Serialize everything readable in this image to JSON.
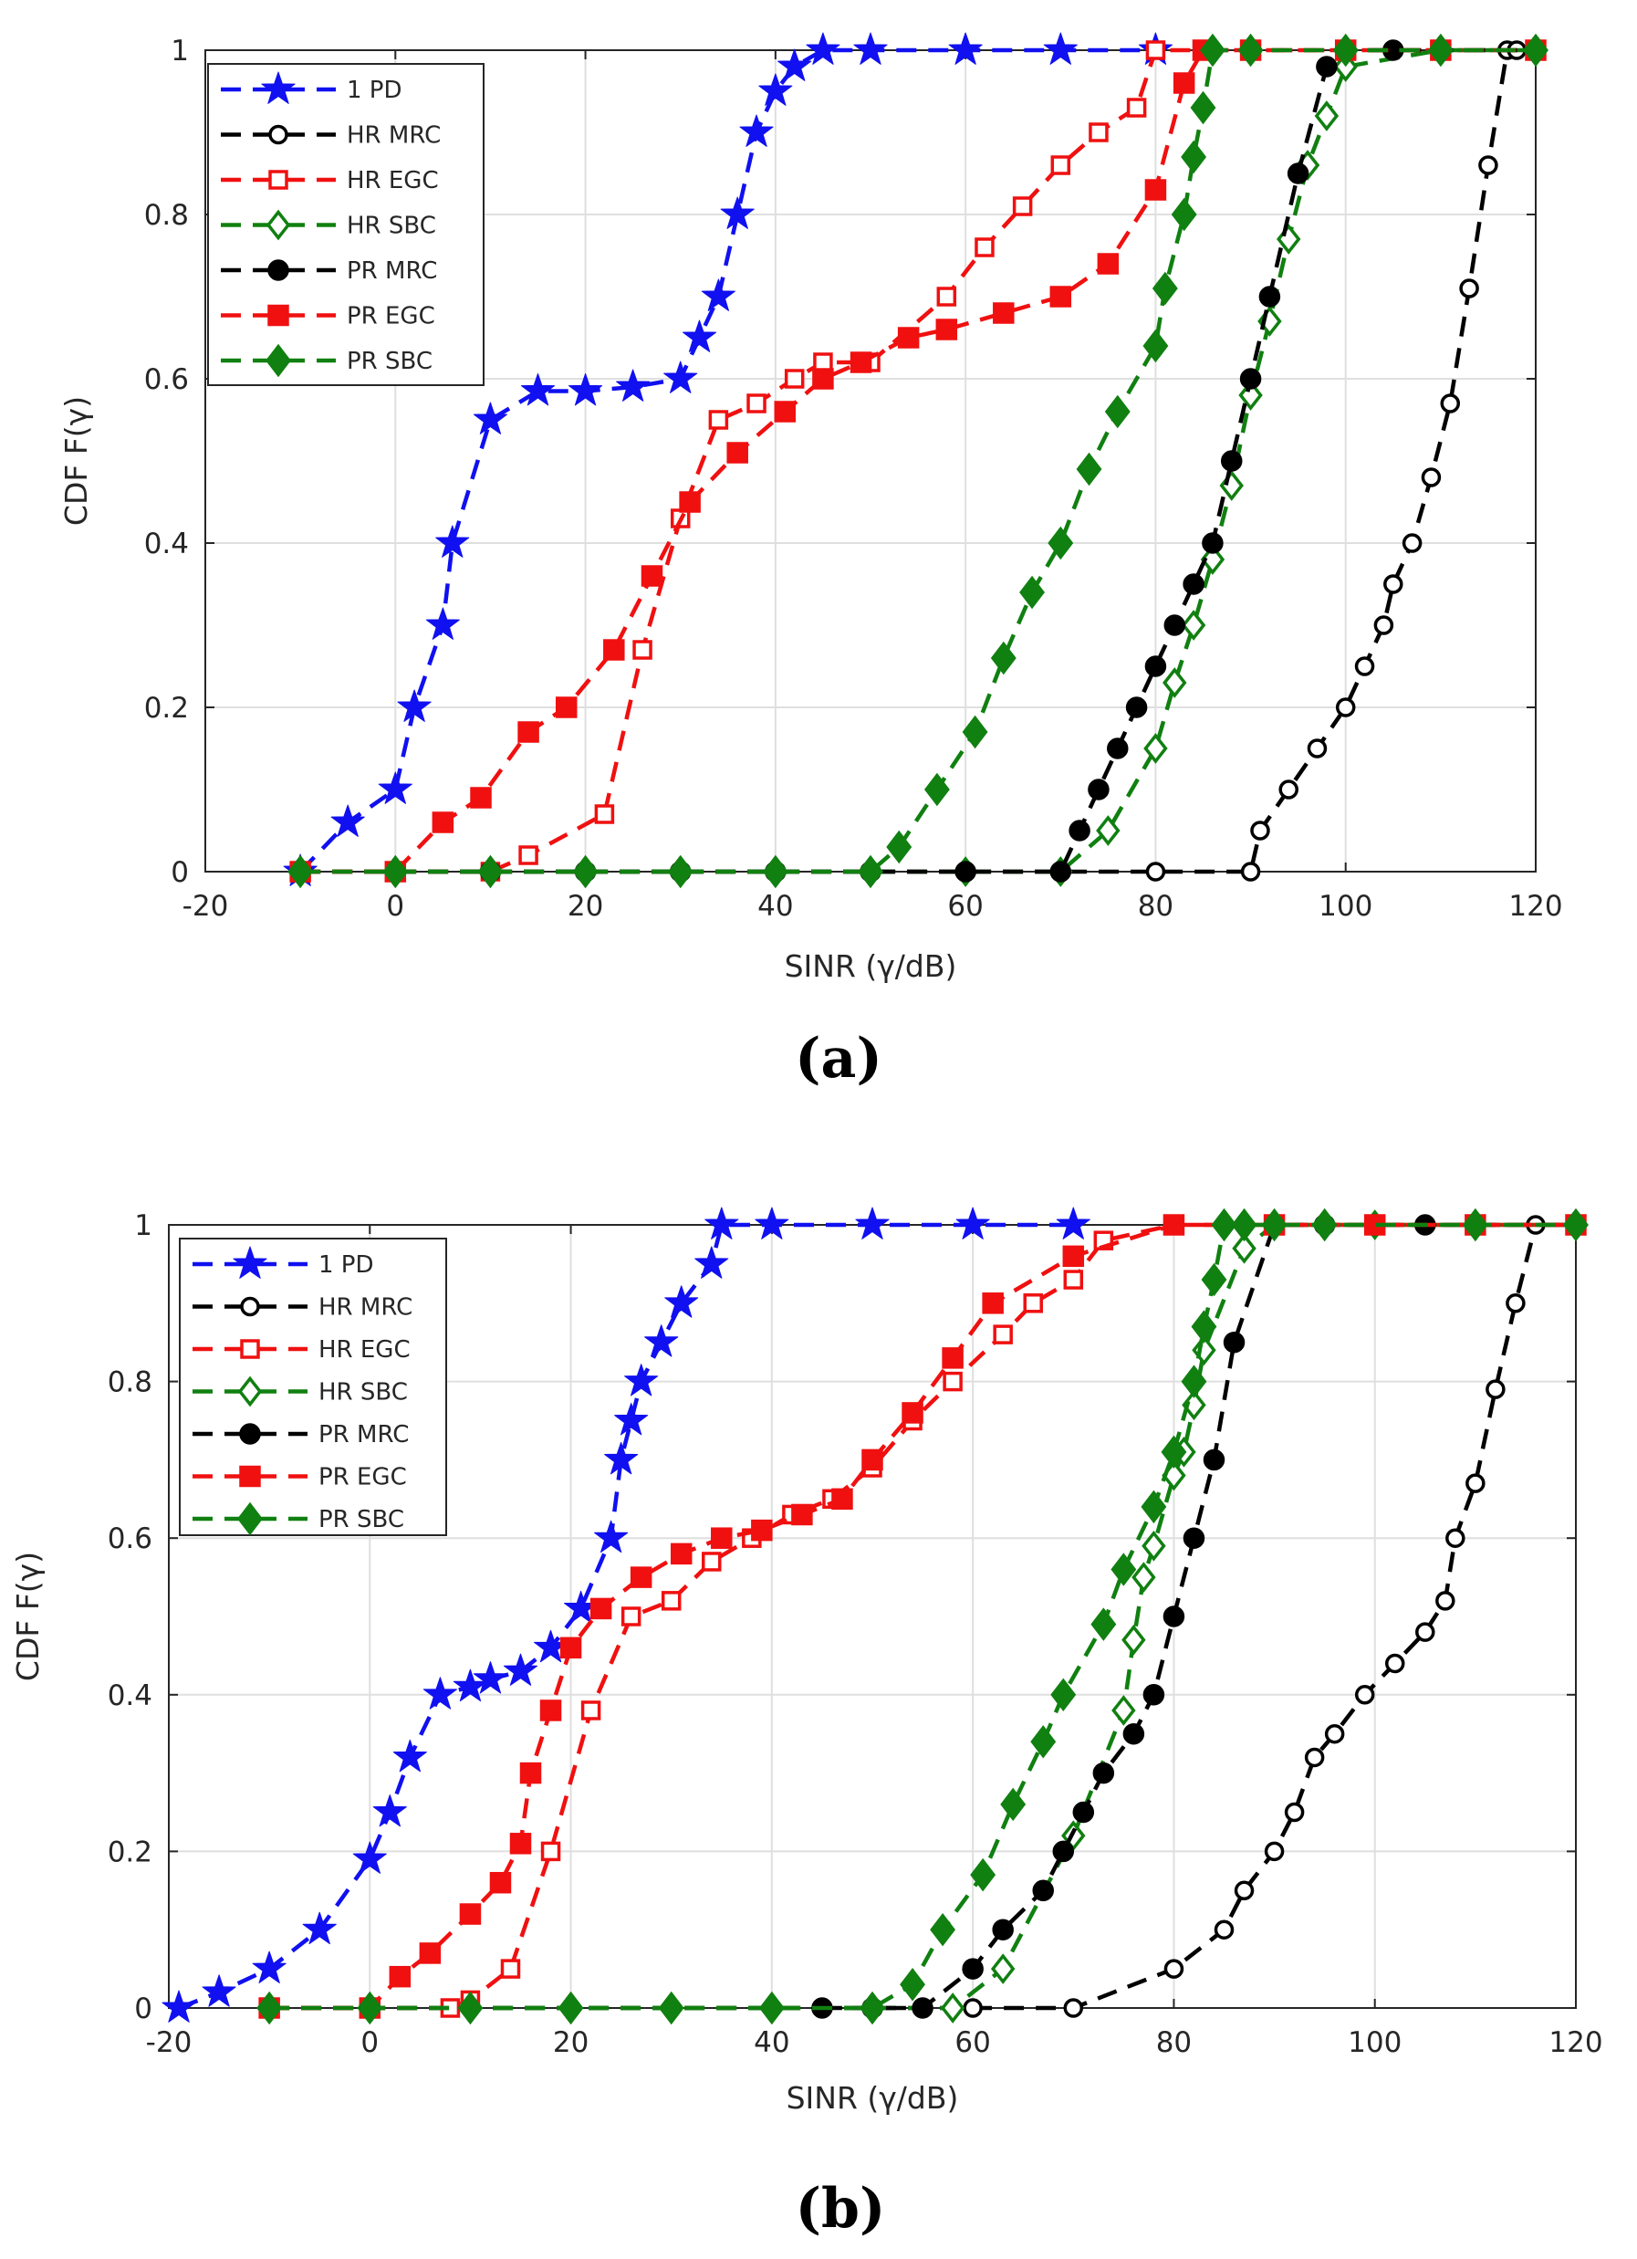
{
  "colors": {
    "blue": "#1010f0",
    "black": "#000000",
    "red": "#f01010",
    "green": "#108010"
  },
  "chart_data": [
    {
      "type": "line",
      "panel_label": "(a)",
      "title": "",
      "xlabel": "SINR (γ/dB)",
      "ylabel": "CDF F(γ)",
      "xlim": [
        -20,
        120
      ],
      "ylim": [
        0,
        1
      ],
      "xticks": [
        -20,
        0,
        20,
        40,
        60,
        80,
        100,
        120
      ],
      "yticks": [
        0,
        0.2,
        0.4,
        0.6,
        0.8,
        1
      ],
      "xtick_labels": [
        "-20",
        "0",
        "20",
        "40",
        "60",
        "80",
        "100",
        "120"
      ],
      "ytick_labels": [
        "0",
        "0.2",
        "0.4",
        "0.6",
        "0.8",
        "1"
      ],
      "grid": true,
      "legend_position": "top-left",
      "series": [
        {
          "name": "1 PD",
          "color": "#1010f0",
          "marker": "star",
          "filled": true,
          "x": [
            -10,
            -5,
            0,
            2,
            5,
            6,
            10,
            15,
            20,
            25,
            30,
            32,
            34,
            36,
            38,
            40,
            42,
            45,
            50,
            60,
            70,
            80
          ],
          "y": [
            0,
            0.06,
            0.1,
            0.2,
            0.3,
            0.4,
            0.55,
            0.585,
            0.585,
            0.59,
            0.6,
            0.65,
            0.7,
            0.8,
            0.9,
            0.95,
            0.98,
            1,
            1,
            1,
            1,
            1
          ]
        },
        {
          "name": "HR MRC",
          "color": "#000000",
          "marker": "circle",
          "filled": false,
          "x": [
            -10,
            0,
            10,
            20,
            30,
            40,
            50,
            60,
            70,
            80,
            90,
            91,
            94,
            97,
            100,
            102,
            104,
            105,
            107,
            109,
            111,
            113,
            115,
            117,
            118,
            120
          ],
          "y": [
            0,
            0,
            0,
            0,
            0,
            0,
            0,
            0,
            0,
            0,
            0,
            0.05,
            0.1,
            0.15,
            0.2,
            0.25,
            0.3,
            0.35,
            0.4,
            0.48,
            0.57,
            0.71,
            0.86,
            1,
            1,
            1
          ]
        },
        {
          "name": "HR EGC",
          "color": "#f01010",
          "marker": "square",
          "filled": false,
          "x": [
            -10,
            0,
            10,
            14,
            22,
            26,
            30,
            34,
            38,
            42,
            45,
            50,
            58,
            62,
            66,
            70,
            74,
            78,
            80,
            85,
            90,
            100,
            110,
            120
          ],
          "y": [
            0,
            0,
            0,
            0.02,
            0.07,
            0.27,
            0.43,
            0.55,
            0.57,
            0.6,
            0.62,
            0.62,
            0.7,
            0.76,
            0.81,
            0.86,
            0.9,
            0.93,
            1,
            1,
            1,
            1,
            1,
            1
          ]
        },
        {
          "name": "HR SBC",
          "color": "#108010",
          "marker": "diamond",
          "filled": false,
          "x": [
            -10,
            0,
            10,
            20,
            30,
            40,
            50,
            60,
            70,
            75,
            80,
            82,
            84,
            86,
            88,
            90,
            92,
            94,
            96,
            98,
            100,
            110,
            120
          ],
          "y": [
            0,
            0,
            0,
            0,
            0,
            0,
            0,
            0,
            0,
            0.05,
            0.15,
            0.23,
            0.3,
            0.38,
            0.47,
            0.58,
            0.67,
            0.77,
            0.86,
            0.92,
            0.98,
            1,
            1
          ]
        },
        {
          "name": "PR MRC",
          "color": "#000000",
          "marker": "circle",
          "filled": true,
          "x": [
            -10,
            0,
            10,
            20,
            30,
            40,
            50,
            60,
            70,
            72,
            74,
            76,
            78,
            80,
            82,
            84,
            86,
            88,
            90,
            92,
            95,
            98,
            100,
            105,
            110,
            120
          ],
          "y": [
            0,
            0,
            0,
            0,
            0,
            0,
            0,
            0,
            0,
            0.05,
            0.1,
            0.15,
            0.2,
            0.25,
            0.3,
            0.35,
            0.4,
            0.5,
            0.6,
            0.7,
            0.85,
            0.98,
            1,
            1,
            1,
            1
          ]
        },
        {
          "name": "PR EGC",
          "color": "#f01010",
          "marker": "square",
          "filled": true,
          "x": [
            -10,
            0,
            5,
            9,
            14,
            18,
            23,
            27,
            31,
            36,
            41,
            45,
            49,
            54,
            58,
            64,
            70,
            75,
            80,
            83,
            85,
            90,
            100,
            110,
            120
          ],
          "y": [
            0,
            0,
            0.06,
            0.09,
            0.17,
            0.2,
            0.27,
            0.36,
            0.45,
            0.51,
            0.56,
            0.6,
            0.62,
            0.65,
            0.66,
            0.68,
            0.7,
            0.74,
            0.83,
            0.96,
            1,
            1,
            1,
            1,
            1
          ]
        },
        {
          "name": "PR SBC",
          "color": "#108010",
          "marker": "diamond",
          "filled": true,
          "x": [
            -10,
            0,
            10,
            20,
            30,
            40,
            50,
            53,
            57,
            61,
            64,
            67,
            70,
            73,
            76,
            80,
            81,
            83,
            84,
            85,
            86,
            90,
            100,
            110,
            120
          ],
          "y": [
            0,
            0,
            0,
            0,
            0,
            0,
            0,
            0.03,
            0.1,
            0.17,
            0.26,
            0.34,
            0.4,
            0.49,
            0.56,
            0.64,
            0.71,
            0.8,
            0.87,
            0.93,
            1,
            1,
            1,
            1,
            1
          ]
        }
      ]
    },
    {
      "type": "line",
      "panel_label": "(b)",
      "title": "",
      "xlabel": "SINR (γ/dB)",
      "ylabel": "CDF F(γ)",
      "xlim": [
        -20,
        120
      ],
      "ylim": [
        0,
        1
      ],
      "xticks": [
        -20,
        0,
        20,
        40,
        60,
        80,
        100,
        120
      ],
      "yticks": [
        0,
        0.2,
        0.4,
        0.6,
        0.8,
        1
      ],
      "xtick_labels": [
        "-20",
        "0",
        "20",
        "40",
        "60",
        "80",
        "100",
        "120"
      ],
      "ytick_labels": [
        "0",
        "0.2",
        "0.4",
        "0.6",
        "0.8",
        "1"
      ],
      "grid": true,
      "legend_position": "top-left",
      "series": [
        {
          "name": "1 PD",
          "color": "#1010f0",
          "marker": "star",
          "filled": true,
          "x": [
            -19,
            -15,
            -10,
            -5,
            0,
            2,
            4,
            7,
            10,
            12,
            15,
            18,
            21,
            24,
            25,
            26,
            27,
            29,
            31,
            34,
            35,
            40,
            50,
            60,
            70
          ],
          "y": [
            0,
            0.02,
            0.05,
            0.1,
            0.19,
            0.25,
            0.32,
            0.4,
            0.41,
            0.42,
            0.43,
            0.46,
            0.51,
            0.6,
            0.7,
            0.75,
            0.8,
            0.85,
            0.9,
            0.95,
            1,
            1,
            1,
            1,
            1
          ]
        },
        {
          "name": "HR MRC",
          "color": "#000000",
          "marker": "circle",
          "filled": false,
          "x": [
            -10,
            0,
            10,
            20,
            30,
            40,
            50,
            60,
            70,
            80,
            85,
            87,
            90,
            92,
            94,
            96,
            99,
            102,
            105,
            107,
            108,
            110,
            112,
            114,
            116,
            120
          ],
          "y": [
            0,
            0,
            0,
            0,
            0,
            0,
            0,
            0,
            0,
            0.05,
            0.1,
            0.15,
            0.2,
            0.25,
            0.32,
            0.35,
            0.4,
            0.44,
            0.48,
            0.52,
            0.6,
            0.67,
            0.79,
            0.9,
            1,
            1
          ]
        },
        {
          "name": "HR EGC",
          "color": "#f01010",
          "marker": "square",
          "filled": false,
          "x": [
            -10,
            0,
            8,
            10,
            14,
            18,
            22,
            26,
            30,
            34,
            38,
            42,
            46,
            50,
            54,
            58,
            63,
            66,
            70,
            73,
            80,
            90,
            100,
            110,
            120
          ],
          "y": [
            0,
            0,
            0,
            0.01,
            0.05,
            0.2,
            0.38,
            0.5,
            0.52,
            0.57,
            0.6,
            0.63,
            0.65,
            0.69,
            0.75,
            0.8,
            0.86,
            0.9,
            0.93,
            0.98,
            1,
            1,
            1,
            1,
            1
          ]
        },
        {
          "name": "HR SBC",
          "color": "#108010",
          "marker": "diamond",
          "filled": false,
          "x": [
            -10,
            0,
            10,
            20,
            30,
            40,
            50,
            58,
            63,
            70,
            75,
            76,
            77,
            78,
            80,
            81,
            82,
            83,
            87,
            90,
            95,
            100,
            110,
            120
          ],
          "y": [
            0,
            0,
            0,
            0,
            0,
            0,
            0,
            0,
            0.05,
            0.22,
            0.38,
            0.47,
            0.55,
            0.59,
            0.68,
            0.71,
            0.77,
            0.84,
            0.97,
            1,
            1,
            1,
            1,
            1
          ]
        },
        {
          "name": "PR MRC",
          "color": "#000000",
          "marker": "circle",
          "filled": true,
          "x": [
            45,
            50,
            55,
            60,
            63,
            67,
            69,
            71,
            73,
            76,
            78,
            80,
            82,
            84,
            86,
            90,
            95,
            100,
            105,
            110,
            120
          ],
          "y": [
            0,
            0,
            0,
            0.05,
            0.1,
            0.15,
            0.2,
            0.25,
            0.3,
            0.35,
            0.4,
            0.5,
            0.6,
            0.7,
            0.85,
            1,
            1,
            1,
            1,
            1,
            1
          ]
        },
        {
          "name": "PR EGC",
          "color": "#f01010",
          "marker": "square",
          "filled": true,
          "x": [
            -10,
            0,
            3,
            6,
            10,
            13,
            15,
            16,
            18,
            20,
            23,
            27,
            31,
            35,
            39,
            43,
            47,
            50,
            54,
            58,
            62,
            70,
            80,
            90,
            100,
            110,
            120
          ],
          "y": [
            0,
            0,
            0.04,
            0.07,
            0.12,
            0.16,
            0.21,
            0.3,
            0.38,
            0.46,
            0.51,
            0.55,
            0.58,
            0.6,
            0.61,
            0.63,
            0.65,
            0.7,
            0.76,
            0.83,
            0.9,
            0.96,
            1,
            1,
            1,
            1,
            1
          ]
        },
        {
          "name": "PR SBC",
          "color": "#108010",
          "marker": "diamond",
          "filled": true,
          "x": [
            -10,
            0,
            10,
            20,
            30,
            40,
            50,
            54,
            57,
            61,
            64,
            67,
            69,
            73,
            75,
            78,
            80,
            82,
            83,
            84,
            85,
            87,
            90,
            95,
            110,
            120
          ],
          "y": [
            0,
            0,
            0,
            0,
            0,
            0,
            0,
            0.03,
            0.1,
            0.17,
            0.26,
            0.34,
            0.4,
            0.49,
            0.56,
            0.64,
            0.71,
            0.8,
            0.87,
            0.93,
            1,
            1,
            1,
            1,
            1,
            1
          ]
        }
      ]
    }
  ]
}
